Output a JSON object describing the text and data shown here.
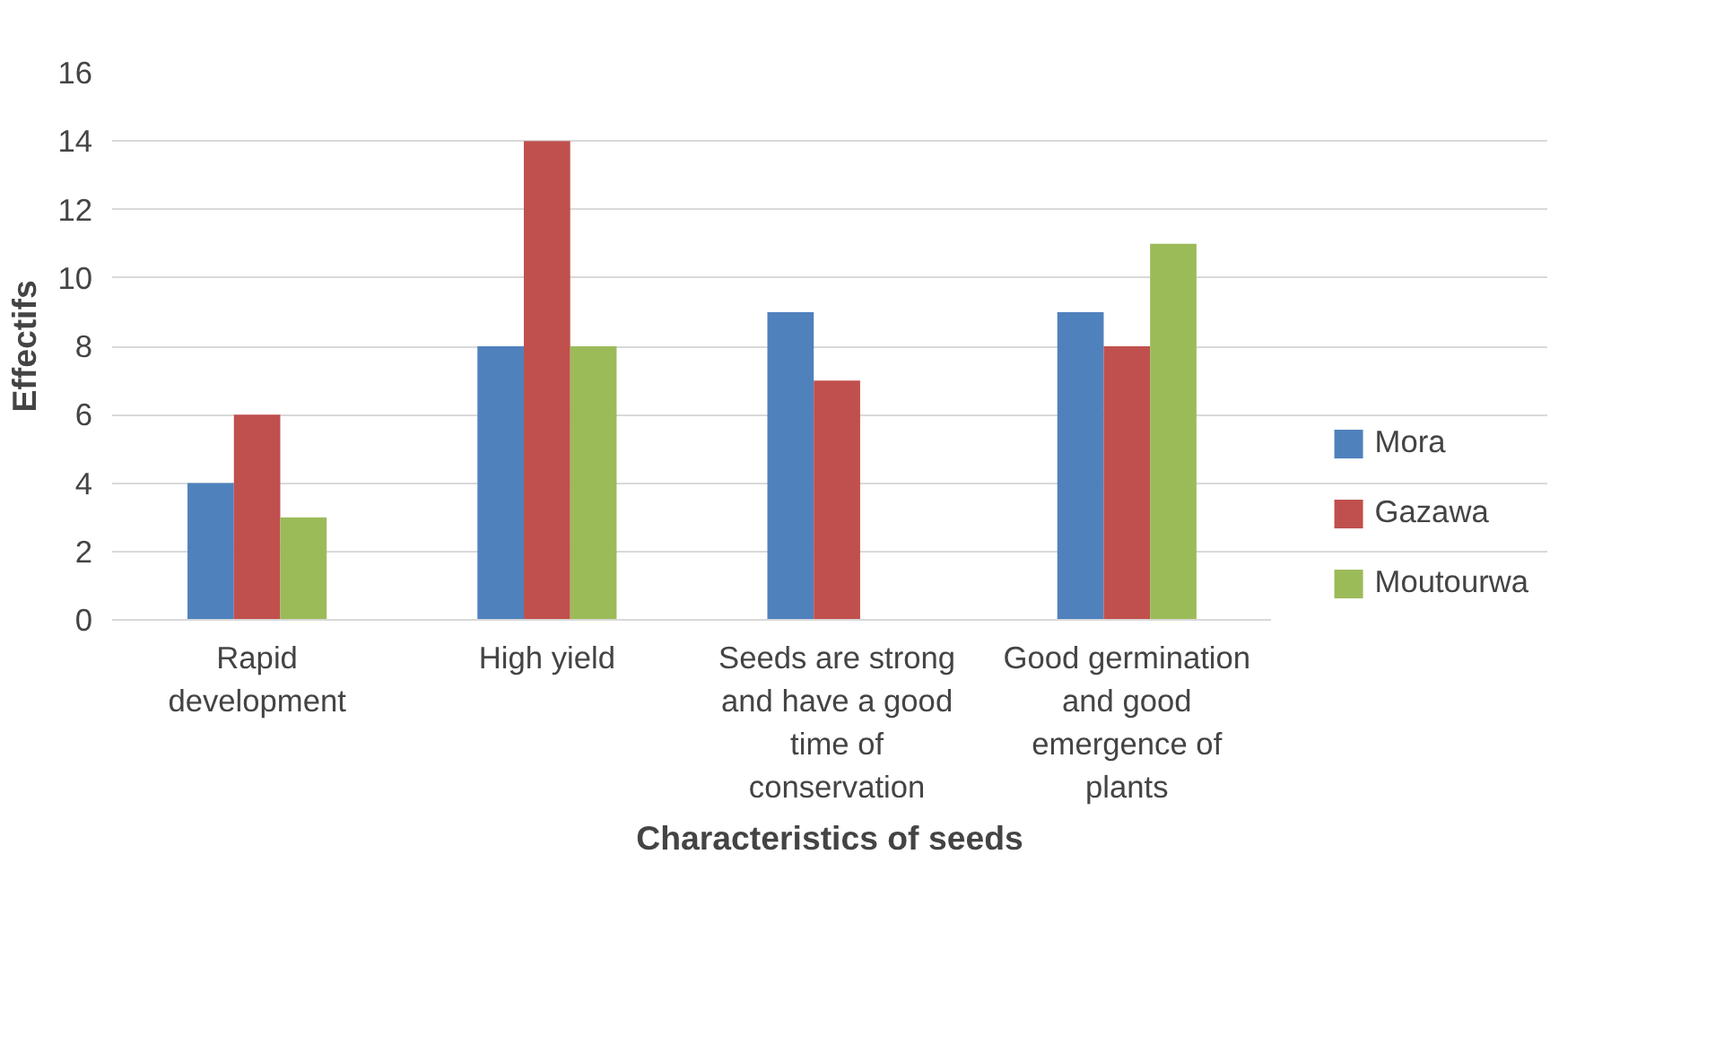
{
  "chart_data": {
    "type": "bar",
    "xlabel": "Characteristics of seeds",
    "ylabel": "Effectifs",
    "categories": [
      "Rapid development",
      "High yield",
      "Seeds are strong and have a good time of conservation",
      "Good germination and good emergence of plants"
    ],
    "series": [
      {
        "name": "Mora",
        "color": "#4f81bd",
        "values": [
          4,
          8,
          9,
          9
        ]
      },
      {
        "name": "Gazawa",
        "color": "#c0504d",
        "values": [
          6,
          14,
          7,
          8
        ]
      },
      {
        "name": "Moutourwa",
        "color": "#9bbb59",
        "values": [
          3,
          8,
          null,
          11
        ]
      }
    ],
    "ylim": [
      0,
      16
    ],
    "yticks": [
      0,
      2,
      4,
      6,
      8,
      10,
      12,
      14,
      16
    ],
    "grid": "y",
    "legend": "right"
  }
}
